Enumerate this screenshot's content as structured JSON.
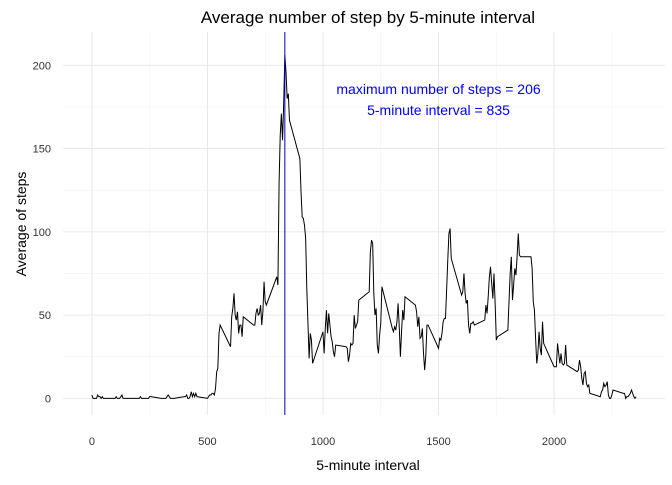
{
  "chart_data": {
    "type": "line",
    "title": "Average number of step by 5-minute interval",
    "xlabel": "5-minute interval",
    "ylabel": "Average of steps",
    "xlim": [
      -125,
      2480
    ],
    "ylim": [
      -10,
      220
    ],
    "x_ticks": [
      0,
      500,
      1000,
      1500,
      2000
    ],
    "y_ticks": [
      0,
      50,
      100,
      150,
      200
    ],
    "grid": true,
    "line_color": "#000000",
    "vline": {
      "x": 835,
      "color": "#0000cc"
    },
    "annotation": {
      "lines": [
        "maximum number of steps = 206",
        "5-minute interval = 835"
      ],
      "x": 1500,
      "y": 178,
      "color": "#0000ff"
    },
    "series": [
      {
        "points": [
          [
            0,
            2
          ],
          [
            5,
            0
          ],
          [
            10,
            0
          ],
          [
            15,
            0
          ],
          [
            20,
            0
          ],
          [
            25,
            2
          ],
          [
            30,
            1
          ],
          [
            35,
            1
          ],
          [
            40,
            0
          ],
          [
            45,
            1
          ],
          [
            50,
            0
          ],
          [
            55,
            0
          ],
          [
            100,
            0
          ],
          [
            105,
            1
          ],
          [
            110,
            0
          ],
          [
            115,
            0
          ],
          [
            120,
            0
          ],
          [
            125,
            1
          ],
          [
            130,
            2
          ],
          [
            135,
            0
          ],
          [
            140,
            0
          ],
          [
            145,
            0
          ],
          [
            150,
            0
          ],
          [
            155,
            0
          ],
          [
            200,
            0
          ],
          [
            205,
            0
          ],
          [
            210,
            1
          ],
          [
            215,
            0
          ],
          [
            220,
            0
          ],
          [
            225,
            0
          ],
          [
            230,
            0
          ],
          [
            235,
            0
          ],
          [
            240,
            0
          ],
          [
            245,
            0
          ],
          [
            250,
            1
          ],
          [
            255,
            1
          ],
          [
            300,
            0
          ],
          [
            305,
            0
          ],
          [
            310,
            0
          ],
          [
            315,
            0
          ],
          [
            320,
            0
          ],
          [
            325,
            1
          ],
          [
            330,
            2
          ],
          [
            335,
            1
          ],
          [
            340,
            0
          ],
          [
            345,
            0
          ],
          [
            350,
            0
          ],
          [
            355,
            0
          ],
          [
            400,
            1
          ],
          [
            405,
            1
          ],
          [
            410,
            2
          ],
          [
            415,
            0
          ],
          [
            420,
            0
          ],
          [
            425,
            1
          ],
          [
            430,
            4
          ],
          [
            435,
            1
          ],
          [
            440,
            3
          ],
          [
            445,
            1
          ],
          [
            450,
            3
          ],
          [
            455,
            1
          ],
          [
            500,
            0
          ],
          [
            505,
            1
          ],
          [
            510,
            2
          ],
          [
            515,
            2
          ],
          [
            520,
            3
          ],
          [
            525,
            3
          ],
          [
            530,
            2
          ],
          [
            535,
            6
          ],
          [
            540,
            16
          ],
          [
            545,
            18
          ],
          [
            550,
            39
          ],
          [
            555,
            44
          ],
          [
            600,
            31
          ],
          [
            605,
            49
          ],
          [
            610,
            54
          ],
          [
            615,
            63
          ],
          [
            620,
            50
          ],
          [
            625,
            47
          ],
          [
            630,
            52
          ],
          [
            635,
            39
          ],
          [
            640,
            44
          ],
          [
            645,
            44
          ],
          [
            650,
            37
          ],
          [
            655,
            49
          ],
          [
            700,
            44
          ],
          [
            705,
            44
          ],
          [
            710,
            51
          ],
          [
            715,
            54
          ],
          [
            720,
            50
          ],
          [
            725,
            51
          ],
          [
            730,
            56
          ],
          [
            735,
            44
          ],
          [
            740,
            52
          ],
          [
            745,
            70
          ],
          [
            750,
            58
          ],
          [
            755,
            56
          ],
          [
            800,
            73
          ],
          [
            805,
            68
          ],
          [
            810,
            129
          ],
          [
            815,
            158
          ],
          [
            820,
            171
          ],
          [
            825,
            155
          ],
          [
            830,
            177
          ],
          [
            835,
            206
          ],
          [
            840,
            196
          ],
          [
            845,
            180
          ],
          [
            850,
            183
          ],
          [
            855,
            167
          ],
          [
            900,
            144
          ],
          [
            905,
            124
          ],
          [
            910,
            109
          ],
          [
            915,
            108
          ],
          [
            920,
            104
          ],
          [
            925,
            96
          ],
          [
            930,
            66
          ],
          [
            935,
            45
          ],
          [
            940,
            24
          ],
          [
            945,
            39
          ],
          [
            950,
            35
          ],
          [
            955,
            21
          ],
          [
            1000,
            40
          ],
          [
            1005,
            27
          ],
          [
            1010,
            42
          ],
          [
            1015,
            53
          ],
          [
            1020,
            39
          ],
          [
            1025,
            51
          ],
          [
            1030,
            44
          ],
          [
            1035,
            37
          ],
          [
            1040,
            34
          ],
          [
            1045,
            28
          ],
          [
            1050,
            25
          ],
          [
            1055,
            32
          ],
          [
            1100,
            31
          ],
          [
            1105,
            30
          ],
          [
            1110,
            22
          ],
          [
            1115,
            26
          ],
          [
            1120,
            33
          ],
          [
            1125,
            32
          ],
          [
            1130,
            33
          ],
          [
            1135,
            50
          ],
          [
            1140,
            42
          ],
          [
            1145,
            44
          ],
          [
            1150,
            46
          ],
          [
            1155,
            59
          ],
          [
            1200,
            64
          ],
          [
            1205,
            88
          ],
          [
            1210,
            95
          ],
          [
            1215,
            93
          ],
          [
            1220,
            63
          ],
          [
            1225,
            50
          ],
          [
            1230,
            54
          ],
          [
            1235,
            32
          ],
          [
            1240,
            27
          ],
          [
            1245,
            38
          ],
          [
            1250,
            45
          ],
          [
            1255,
            67
          ],
          [
            1300,
            42
          ],
          [
            1305,
            40
          ],
          [
            1310,
            43
          ],
          [
            1315,
            41
          ],
          [
            1320,
            46
          ],
          [
            1325,
            57
          ],
          [
            1330,
            43
          ],
          [
            1335,
            25
          ],
          [
            1340,
            40
          ],
          [
            1345,
            53
          ],
          [
            1350,
            47
          ],
          [
            1355,
            61
          ],
          [
            1400,
            56
          ],
          [
            1405,
            52
          ],
          [
            1410,
            43
          ],
          [
            1415,
            49
          ],
          [
            1420,
            36
          ],
          [
            1425,
            37
          ],
          [
            1430,
            42
          ],
          [
            1435,
            27
          ],
          [
            1440,
            17
          ],
          [
            1445,
            26
          ],
          [
            1450,
            44
          ],
          [
            1455,
            44
          ],
          [
            1500,
            30
          ],
          [
            1505,
            36
          ],
          [
            1510,
            35
          ],
          [
            1515,
            39
          ],
          [
            1520,
            46
          ],
          [
            1525,
            48
          ],
          [
            1530,
            48
          ],
          [
            1535,
            65
          ],
          [
            1540,
            83
          ],
          [
            1545,
            99
          ],
          [
            1550,
            102
          ],
          [
            1555,
            84
          ],
          [
            1600,
            62
          ],
          [
            1605,
            64
          ],
          [
            1610,
            75
          ],
          [
            1615,
            63
          ],
          [
            1620,
            57
          ],
          [
            1625,
            59
          ],
          [
            1630,
            44
          ],
          [
            1635,
            39
          ],
          [
            1640,
            45
          ],
          [
            1645,
            45
          ],
          [
            1650,
            46
          ],
          [
            1655,
            44
          ],
          [
            1700,
            47
          ],
          [
            1705,
            56
          ],
          [
            1710,
            51
          ],
          [
            1715,
            61
          ],
          [
            1720,
            73
          ],
          [
            1725,
            79
          ],
          [
            1730,
            69
          ],
          [
            1735,
            60
          ],
          [
            1740,
            75
          ],
          [
            1745,
            57
          ],
          [
            1750,
            35
          ],
          [
            1755,
            37
          ],
          [
            1800,
            41
          ],
          [
            1805,
            58
          ],
          [
            1810,
            75
          ],
          [
            1815,
            85
          ],
          [
            1820,
            59
          ],
          [
            1825,
            68
          ],
          [
            1830,
            78
          ],
          [
            1835,
            74
          ],
          [
            1840,
            85
          ],
          [
            1845,
            99
          ],
          [
            1850,
            86
          ],
          [
            1855,
            85
          ],
          [
            1900,
            85
          ],
          [
            1905,
            78
          ],
          [
            1910,
            58
          ],
          [
            1915,
            53
          ],
          [
            1920,
            36
          ],
          [
            1925,
            21
          ],
          [
            1930,
            27
          ],
          [
            1935,
            40
          ],
          [
            1940,
            30
          ],
          [
            1945,
            26
          ],
          [
            1950,
            46
          ],
          [
            1955,
            33
          ],
          [
            2000,
            19
          ],
          [
            2005,
            19
          ],
          [
            2010,
            19
          ],
          [
            2015,
            33
          ],
          [
            2020,
            27
          ],
          [
            2025,
            21
          ],
          [
            2030,
            27
          ],
          [
            2035,
            21
          ],
          [
            2040,
            20
          ],
          [
            2045,
            21
          ],
          [
            2050,
            32
          ],
          [
            2055,
            20
          ],
          [
            2100,
            16
          ],
          [
            2105,
            17
          ],
          [
            2110,
            23
          ],
          [
            2115,
            19
          ],
          [
            2120,
            12
          ],
          [
            2125,
            8
          ],
          [
            2130,
            15
          ],
          [
            2135,
            16
          ],
          [
            2140,
            9
          ],
          [
            2145,
            7
          ],
          [
            2150,
            8
          ],
          [
            2155,
            3
          ],
          [
            2200,
            1
          ],
          [
            2205,
            4
          ],
          [
            2210,
            5
          ],
          [
            2215,
            9
          ],
          [
            2220,
            7
          ],
          [
            2225,
            8
          ],
          [
            2230,
            10
          ],
          [
            2235,
            2
          ],
          [
            2240,
            0
          ],
          [
            2245,
            0
          ],
          [
            2250,
            2
          ],
          [
            2255,
            5
          ],
          [
            2300,
            3
          ],
          [
            2305,
            3
          ],
          [
            2310,
            0
          ],
          [
            2315,
            1
          ],
          [
            2320,
            1
          ],
          [
            2325,
            2
          ],
          [
            2330,
            3
          ],
          [
            2335,
            5
          ],
          [
            2340,
            3
          ],
          [
            2345,
            1
          ],
          [
            2350,
            0
          ],
          [
            2355,
            1
          ]
        ]
      }
    ]
  }
}
